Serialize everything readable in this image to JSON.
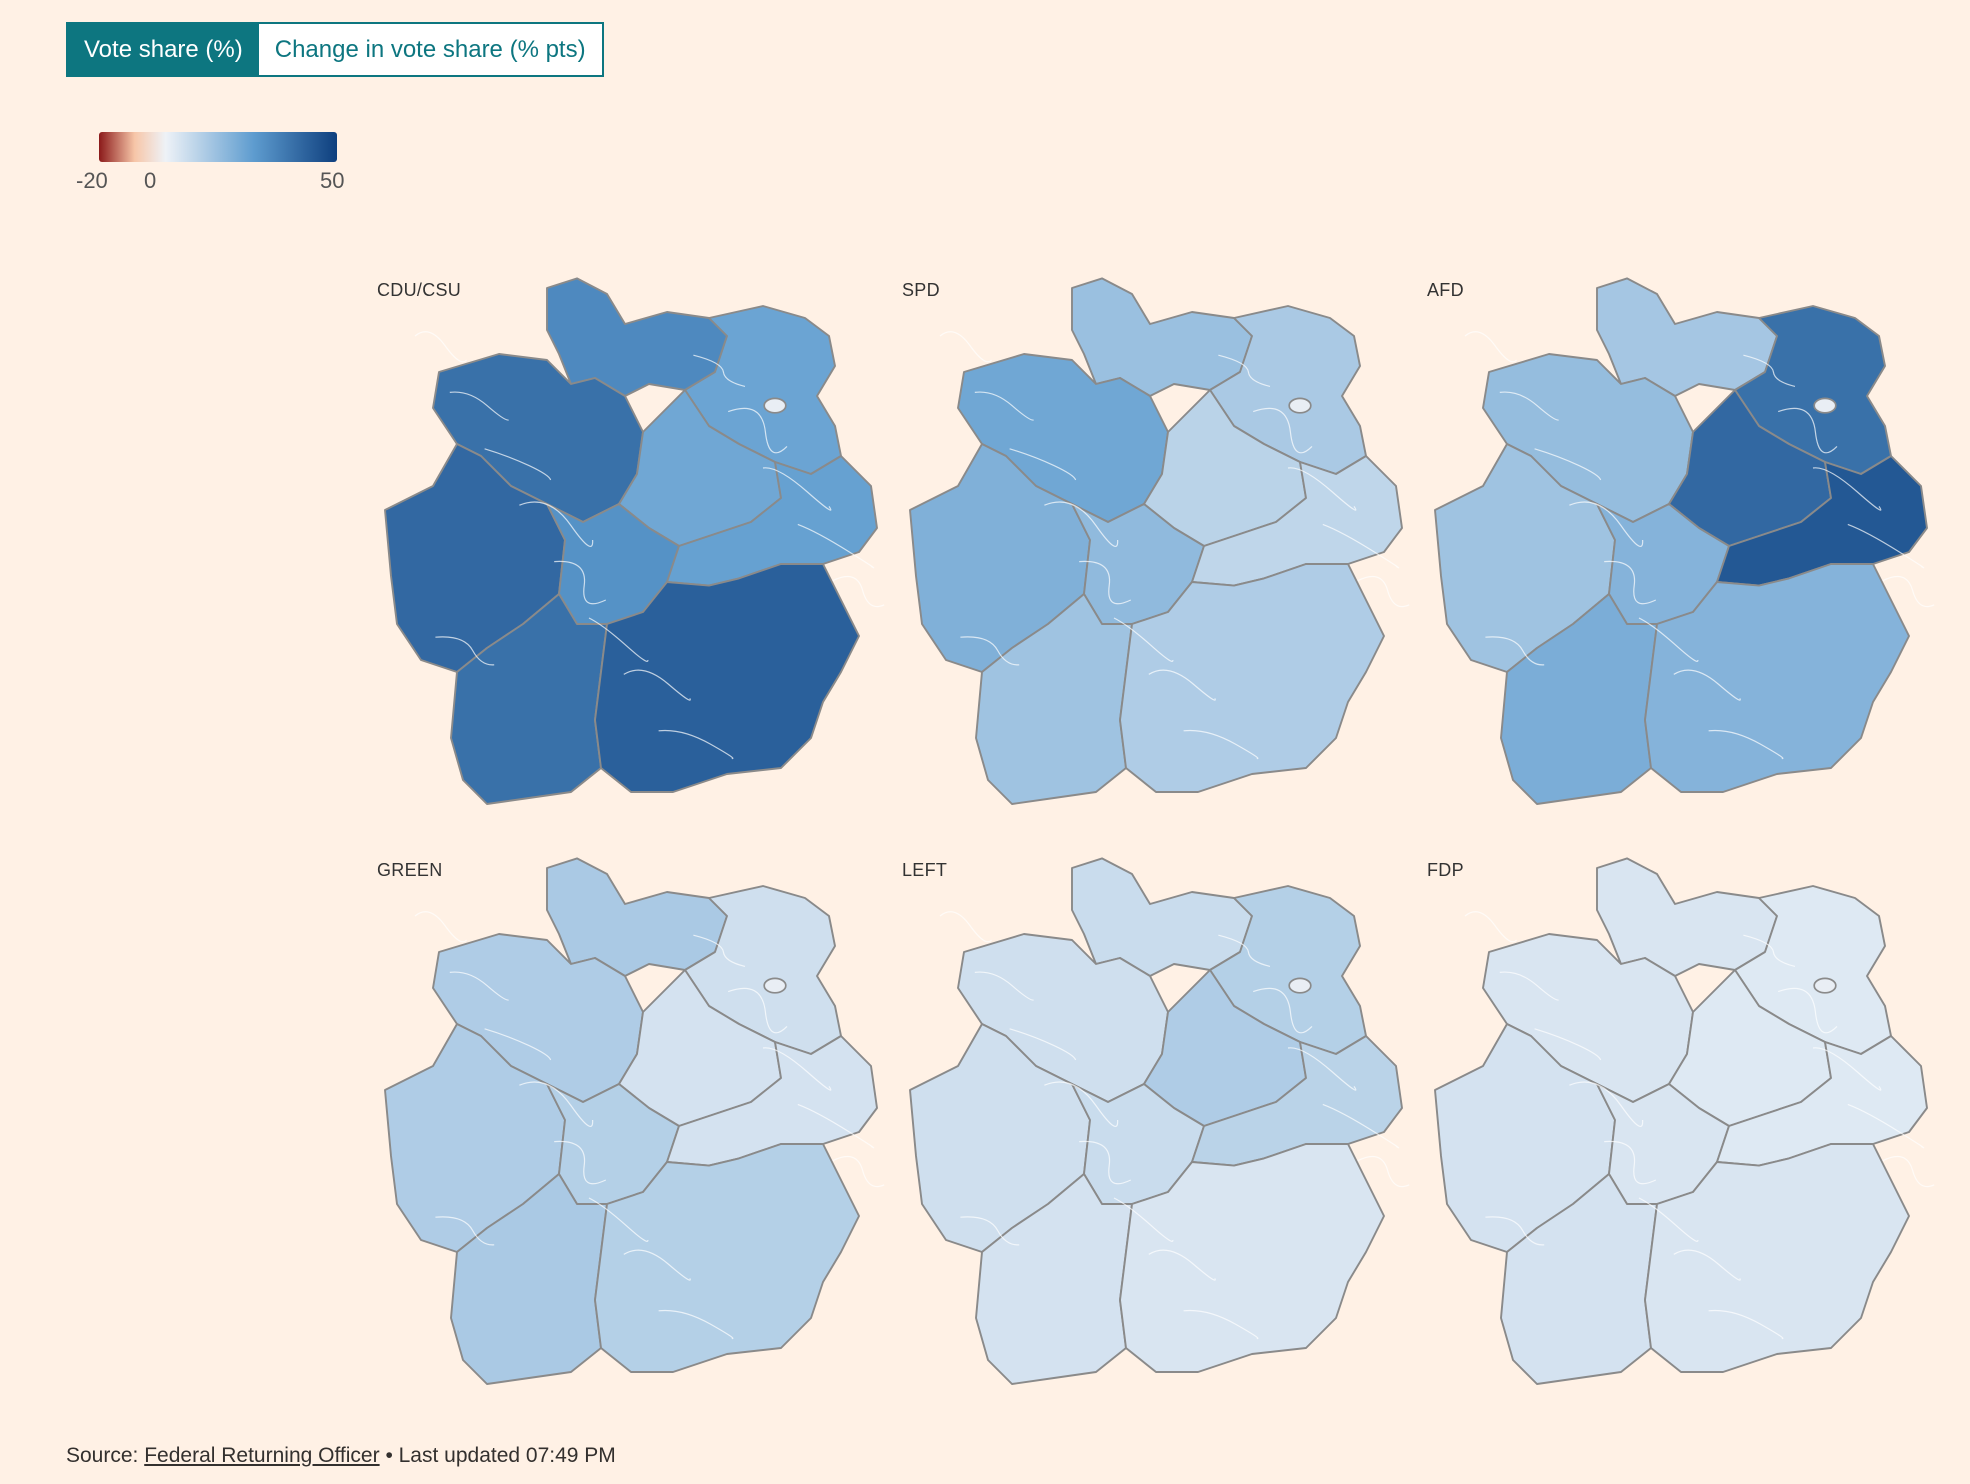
{
  "toggle": {
    "options": [
      "Vote share (%)",
      "Change in vote share (% pts)"
    ],
    "active_index": 0
  },
  "legend": {
    "min_label": "-20",
    "zero_label": "0",
    "max_label": "50",
    "min": -20,
    "max": 50,
    "colors": {
      "neg_strong": "#8b1a1a",
      "neg_light": "#f7c6a8",
      "zero": "#eef2f7",
      "pos_mid": "#5e9ccf",
      "pos_strong": "#0e3f7e"
    }
  },
  "maps": [
    {
      "party": "CDU/CSU",
      "regions": {
        "north": 32,
        "northwest": 38,
        "west": 40,
        "east_north": 25,
        "east_mid": 24,
        "center": 30,
        "east_south": 26,
        "southwest": 38,
        "south": 42
      }
    },
    {
      "party": "SPD",
      "regions": {
        "north": 16,
        "northwest": 24,
        "west": 21,
        "east_north": 13,
        "east_mid": 10,
        "center": 18,
        "east_south": 9,
        "southwest": 15,
        "south": 12
      }
    },
    {
      "party": "AFD",
      "regions": {
        "north": 14,
        "northwest": 17,
        "west": 15,
        "east_north": 38,
        "east_mid": 40,
        "center": 20,
        "east_south": 44,
        "southwest": 22,
        "south": 20
      }
    },
    {
      "party": "GREEN",
      "regions": {
        "north": 13,
        "northwest": 12,
        "west": 12,
        "east_north": 6,
        "east_mid": 5,
        "center": 11,
        "east_south": 5,
        "southwest": 13,
        "south": 11
      }
    },
    {
      "party": "LEFT",
      "regions": {
        "north": 7,
        "northwest": 6,
        "west": 6,
        "east_north": 11,
        "east_mid": 12,
        "center": 7,
        "east_south": 10,
        "southwest": 5,
        "south": 4
      }
    },
    {
      "party": "FDP",
      "regions": {
        "north": 4,
        "northwest": 4,
        "west": 5,
        "east_north": 3,
        "east_mid": 3,
        "center": 4,
        "east_south": 3,
        "southwest": 5,
        "south": 4
      }
    }
  ],
  "source": {
    "prefix": "Source: ",
    "link_text": "Federal Returning Officer",
    "suffix": " • Last updated 07:49 PM"
  }
}
